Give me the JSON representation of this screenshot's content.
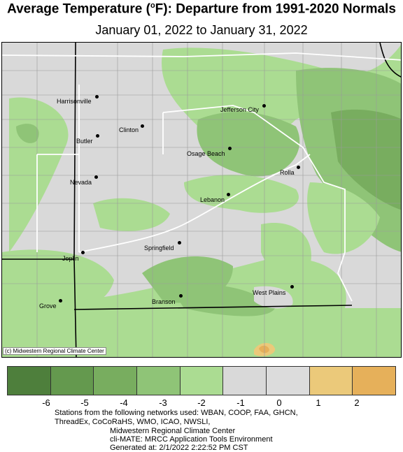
{
  "header": {
    "title_main": "Average Temperature (",
    "title_degree": "o",
    "title_rest": "F): Departure from 1991-2020 Normals",
    "subtitle": "January 01, 2022 to January 31, 2022"
  },
  "map": {
    "cities": [
      {
        "name": "Harrisonville"
      },
      {
        "name": "Jefferson City"
      },
      {
        "name": "Clinton"
      },
      {
        "name": "Butler"
      },
      {
        "name": "Osage Beach"
      },
      {
        "name": "Rolla"
      },
      {
        "name": "Nevada"
      },
      {
        "name": "Lebanon"
      },
      {
        "name": "Springfield"
      },
      {
        "name": "Joplin"
      },
      {
        "name": "West Plains"
      },
      {
        "name": "Grove"
      },
      {
        "name": "Branson"
      }
    ],
    "credit": "(c) Midwestern Regional Climate Center"
  },
  "legend": {
    "colors": [
      "#4e7f3c",
      "#64994e",
      "#78ad5f",
      "#8fc477",
      "#abdc92",
      "#d9d9d9",
      "#dcdcdc",
      "#ebc97a",
      "#e6b05a"
    ],
    "ticks": [
      "-6",
      "-5",
      "-4",
      "-3",
      "-2",
      "-1",
      "0",
      "1",
      "2"
    ]
  },
  "footer": {
    "line1": "Stations from the following networks used: WBAN, COOP, FAA, GHCN,",
    "line2": "ThreadEx, CoCoRaHS, WMO, ICAO, NWSLI,",
    "line3": "Midwestern Regional Climate Center",
    "line4": "cli-MATE: MRCC Application Tools Environment",
    "line5": "Generated at: 2/1/2022 2:22:52 PM CST"
  }
}
